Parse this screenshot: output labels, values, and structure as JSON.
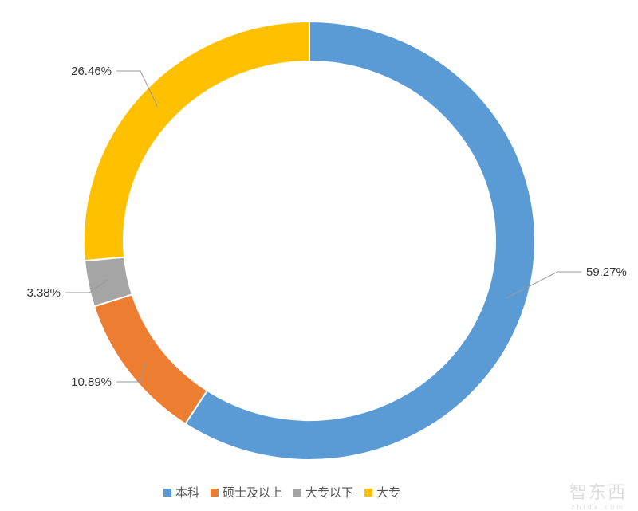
{
  "chart_data": {
    "type": "pie",
    "variant": "donut",
    "title": "",
    "categories": [
      "本科",
      "硕士及以上",
      "大专以下",
      "大专"
    ],
    "values": [
      59.27,
      10.89,
      3.38,
      26.46
    ],
    "labels": [
      "59.27%",
      "10.89%",
      "3.38%",
      "26.46%"
    ],
    "colors": [
      "#5B9BD5",
      "#ED7D31",
      "#A5A5A5",
      "#FFC000"
    ],
    "start_angle": "top, clockwise",
    "legend_position": "bottom"
  },
  "watermark": {
    "text": "智东西",
    "sub": "zhidx.com"
  }
}
